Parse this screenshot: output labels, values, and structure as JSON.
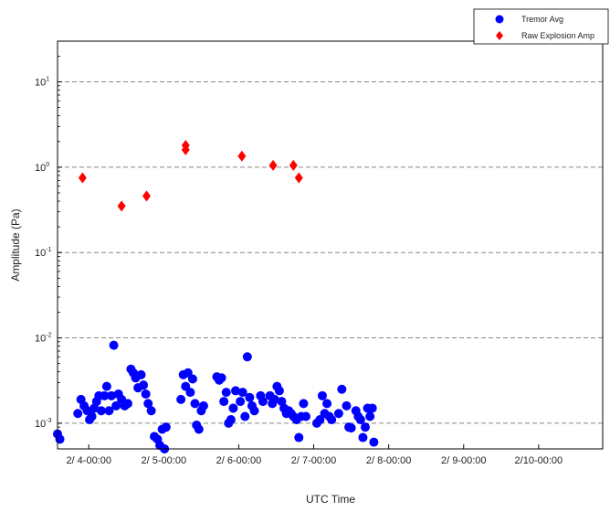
{
  "chart_data": {
    "type": "scatter",
    "title": "",
    "xlabel": "UTC Time",
    "ylabel": "Amplitude (Pa)",
    "yscale": "log",
    "ylim": [
      0.0005,
      30
    ],
    "xlim": [
      "2/3 14:00",
      "2/10 20:30"
    ],
    "grid": "horizontal dashed at decades",
    "legend_position": "top-right",
    "x_ticks": [
      {
        "x": "2/4 00:00",
        "label": "2/ 4-00:00"
      },
      {
        "x": "2/5 00:00",
        "label": "2/ 5-00:00"
      },
      {
        "x": "2/6 00:00",
        "label": "2/ 6-00:00"
      },
      {
        "x": "2/7 00:00",
        "label": "2/ 7-00:00"
      },
      {
        "x": "2/8 00:00",
        "label": "2/ 8-00:00"
      },
      {
        "x": "2/9 00:00",
        "label": "2/ 9-00:00"
      },
      {
        "x": "2/10 00:00",
        "label": "2/10-00:00"
      }
    ],
    "y_ticks": [
      {
        "value": 10,
        "base": "10",
        "exp": "1"
      },
      {
        "value": 1,
        "base": "10",
        "exp": "0"
      },
      {
        "value": 0.1,
        "base": "10",
        "exp": "-1"
      },
      {
        "value": 0.01,
        "base": "10",
        "exp": "-2"
      },
      {
        "value": 0.001,
        "base": "10",
        "exp": "-3"
      }
    ],
    "series": [
      {
        "name": "Tremor Avg",
        "marker": "circle",
        "color": "#0000ff",
        "points": [
          {
            "x": "2/3 14:00",
            "y": 0.00075
          },
          {
            "x": "2/3 14:45",
            "y": 0.00065
          },
          {
            "x": "2/3 20:30",
            "y": 0.0013
          },
          {
            "x": "2/3 21:30",
            "y": 0.0019
          },
          {
            "x": "2/3 22:30",
            "y": 0.0016
          },
          {
            "x": "2/3 23:30",
            "y": 0.0014
          },
          {
            "x": "2/4 00:15",
            "y": 0.0011
          },
          {
            "x": "2/4 01:00",
            "y": 0.0012
          },
          {
            "x": "2/4 01:45",
            "y": 0.0015
          },
          {
            "x": "2/4 02:30",
            "y": 0.0018
          },
          {
            "x": "2/4 03:15",
            "y": 0.0021
          },
          {
            "x": "2/4 04:00",
            "y": 0.0014
          },
          {
            "x": "2/4 05:00",
            "y": 0.0021
          },
          {
            "x": "2/4 05:45",
            "y": 0.0027
          },
          {
            "x": "2/4 06:30",
            "y": 0.0014
          },
          {
            "x": "2/4 07:15",
            "y": 0.0021
          },
          {
            "x": "2/4 08:00",
            "y": 0.0082
          },
          {
            "x": "2/4 08:45",
            "y": 0.0016
          },
          {
            "x": "2/4 09:30",
            "y": 0.0022
          },
          {
            "x": "2/4 10:30",
            "y": 0.0019
          },
          {
            "x": "2/4 11:30",
            "y": 0.0016
          },
          {
            "x": "2/4 12:30",
            "y": 0.0017
          },
          {
            "x": "2/4 13:30",
            "y": 0.0043
          },
          {
            "x": "2/4 14:15",
            "y": 0.0039
          },
          {
            "x": "2/4 15:00",
            "y": 0.0034
          },
          {
            "x": "2/4 15:45",
            "y": 0.0026
          },
          {
            "x": "2/4 16:45",
            "y": 0.0037
          },
          {
            "x": "2/4 17:30",
            "y": 0.0028
          },
          {
            "x": "2/4 18:15",
            "y": 0.0022
          },
          {
            "x": "2/4 19:00",
            "y": 0.0017
          },
          {
            "x": "2/4 20:00",
            "y": 0.0014
          },
          {
            "x": "2/4 21:00",
            "y": 0.0007
          },
          {
            "x": "2/4 22:00",
            "y": 0.00065
          },
          {
            "x": "2/4 22:45",
            "y": 0.00055
          },
          {
            "x": "2/4 23:30",
            "y": 0.00085
          },
          {
            "x": "2/5 00:15",
            "y": 0.0005
          },
          {
            "x": "2/5 00:45",
            "y": 0.0009
          },
          {
            "x": "2/5 05:30",
            "y": 0.0019
          },
          {
            "x": "2/5 06:15",
            "y": 0.0037
          },
          {
            "x": "2/5 07:00",
            "y": 0.0027
          },
          {
            "x": "2/5 07:45",
            "y": 0.0039
          },
          {
            "x": "2/5 08:30",
            "y": 0.0023
          },
          {
            "x": "2/5 09:15",
            "y": 0.0033
          },
          {
            "x": "2/5 10:00",
            "y": 0.0017
          },
          {
            "x": "2/5 10:30",
            "y": 0.00095
          },
          {
            "x": "2/5 11:15",
            "y": 0.00085
          },
          {
            "x": "2/5 12:00",
            "y": 0.0014
          },
          {
            "x": "2/5 12:45",
            "y": 0.0016
          },
          {
            "x": "2/5 17:00",
            "y": 0.0035
          },
          {
            "x": "2/5 17:45",
            "y": 0.0032
          },
          {
            "x": "2/5 18:30",
            "y": 0.0034
          },
          {
            "x": "2/5 19:15",
            "y": 0.0018
          },
          {
            "x": "2/5 20:00",
            "y": 0.0023
          },
          {
            "x": "2/5 20:45",
            "y": 0.001
          },
          {
            "x": "2/5 21:30",
            "y": 0.0011
          },
          {
            "x": "2/5 22:15",
            "y": 0.0015
          },
          {
            "x": "2/5 23:00",
            "y": 0.0024
          },
          {
            "x": "2/6 00:30",
            "y": 0.0018
          },
          {
            "x": "2/6 01:15",
            "y": 0.0023
          },
          {
            "x": "2/6 02:00",
            "y": 0.0012
          },
          {
            "x": "2/6 02:45",
            "y": 0.006
          },
          {
            "x": "2/6 03:30",
            "y": 0.002
          },
          {
            "x": "2/6 04:15",
            "y": 0.0016
          },
          {
            "x": "2/6 05:00",
            "y": 0.0014
          },
          {
            "x": "2/6 07:00",
            "y": 0.0021
          },
          {
            "x": "2/6 07:45",
            "y": 0.0018
          },
          {
            "x": "2/6 10:00",
            "y": 0.0021
          },
          {
            "x": "2/6 10:45",
            "y": 0.0017
          },
          {
            "x": "2/6 11:30",
            "y": 0.0019
          },
          {
            "x": "2/6 12:15",
            "y": 0.0027
          },
          {
            "x": "2/6 13:00",
            "y": 0.0024
          },
          {
            "x": "2/6 13:45",
            "y": 0.0018
          },
          {
            "x": "2/6 14:30",
            "y": 0.0015
          },
          {
            "x": "2/6 15:15",
            "y": 0.0013
          },
          {
            "x": "2/6 16:00",
            "y": 0.0014
          },
          {
            "x": "2/6 16:45",
            "y": 0.0013
          },
          {
            "x": "2/6 17:30",
            "y": 0.0012
          },
          {
            "x": "2/6 18:30",
            "y": 0.0011
          },
          {
            "x": "2/6 19:15",
            "y": 0.00068
          },
          {
            "x": "2/6 20:00",
            "y": 0.0012
          },
          {
            "x": "2/6 20:45",
            "y": 0.0017
          },
          {
            "x": "2/6 21:30",
            "y": 0.0012
          },
          {
            "x": "2/7 01:00",
            "y": 0.001
          },
          {
            "x": "2/7 02:00",
            "y": 0.0011
          },
          {
            "x": "2/7 02:45",
            "y": 0.0021
          },
          {
            "x": "2/7 03:30",
            "y": 0.0013
          },
          {
            "x": "2/7 04:15",
            "y": 0.0017
          },
          {
            "x": "2/7 05:00",
            "y": 0.0012
          },
          {
            "x": "2/7 05:45",
            "y": 0.0011
          },
          {
            "x": "2/7 08:00",
            "y": 0.0013
          },
          {
            "x": "2/7 09:00",
            "y": 0.0025
          },
          {
            "x": "2/7 10:30",
            "y": 0.0016
          },
          {
            "x": "2/7 11:15",
            "y": 0.0009
          },
          {
            "x": "2/7 12:00",
            "y": 0.00088
          },
          {
            "x": "2/7 13:30",
            "y": 0.0014
          },
          {
            "x": "2/7 14:15",
            "y": 0.0012
          },
          {
            "x": "2/7 15:00",
            "y": 0.0011
          },
          {
            "x": "2/7 15:45",
            "y": 0.00068
          },
          {
            "x": "2/7 16:30",
            "y": 0.0009
          },
          {
            "x": "2/7 17:15",
            "y": 0.0015
          },
          {
            "x": "2/7 18:00",
            "y": 0.0012
          },
          {
            "x": "2/7 18:45",
            "y": 0.0015
          },
          {
            "x": "2/7 19:15",
            "y": 0.0006
          }
        ]
      },
      {
        "name": "Raw Explosion Amp",
        "marker": "diamond",
        "color": "#ff0000",
        "points": [
          {
            "x": "2/3 22:00",
            "y": 0.75
          },
          {
            "x": "2/4 10:30",
            "y": 0.35
          },
          {
            "x": "2/4 18:30",
            "y": 0.46
          },
          {
            "x": "2/5 07:00",
            "y": 1.6
          },
          {
            "x": "2/5 07:01",
            "y": 1.8
          },
          {
            "x": "2/6 01:00",
            "y": 1.35
          },
          {
            "x": "2/6 11:00",
            "y": 1.05
          },
          {
            "x": "2/6 17:30",
            "y": 1.05
          },
          {
            "x": "2/6 19:15",
            "y": 0.75
          }
        ]
      }
    ]
  }
}
